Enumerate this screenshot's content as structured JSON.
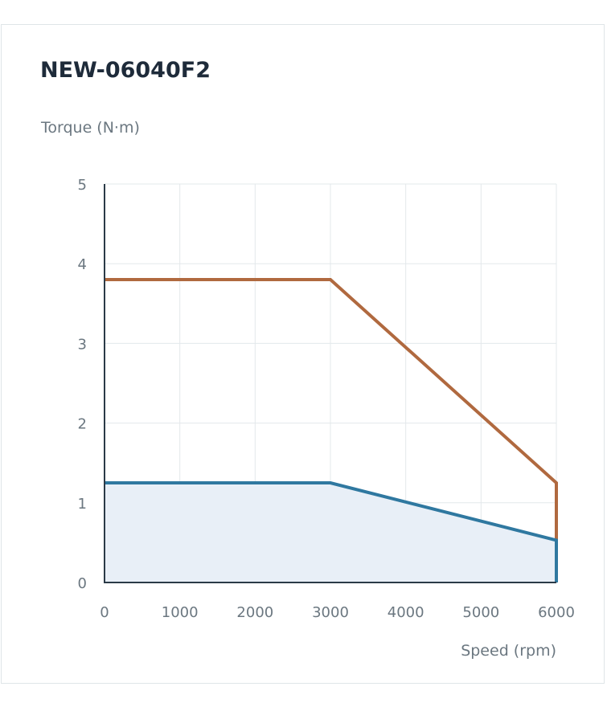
{
  "chart_data": {
    "type": "area",
    "title": "NEW-06040F2",
    "ylabel": "Torque (N·m)",
    "xlabel": "Speed (rpm)",
    "xlim": [
      0,
      6000
    ],
    "ylim": [
      0,
      5
    ],
    "x_ticks": [
      "0",
      "1000",
      "2000",
      "3000",
      "4000",
      "5000",
      "6000"
    ],
    "y_ticks": [
      "0",
      "1",
      "2",
      "3",
      "4",
      "5"
    ],
    "grid": true,
    "series": [
      {
        "style": "line",
        "color": "#b0693f",
        "points": [
          [
            0,
            3.8
          ],
          [
            3000,
            3.8
          ],
          [
            6000,
            1.25
          ],
          [
            6000,
            0
          ]
        ]
      },
      {
        "style": "filled",
        "color": "#2f78a0",
        "fill": "#e8eff7",
        "points": [
          [
            0,
            1.25
          ],
          [
            3000,
            1.25
          ],
          [
            6000,
            0.53
          ],
          [
            6000,
            0
          ]
        ]
      }
    ]
  }
}
